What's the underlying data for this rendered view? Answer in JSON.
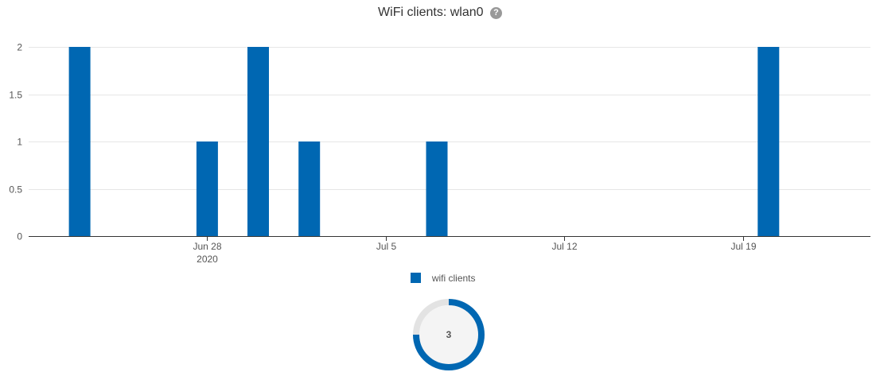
{
  "header": {
    "title": "WiFi clients: wlan0",
    "help_glyph": "?"
  },
  "colors": {
    "series": "#0067b2",
    "gauge_track": "#e3e3e3",
    "gauge_inner": "#f4f4f4"
  },
  "chart_data": {
    "type": "bar",
    "title": "WiFi clients: wlan0",
    "xlabel": "",
    "ylabel": "",
    "ylim": [
      0,
      2
    ],
    "yticks": [
      {
        "value": 0,
        "label": "0"
      },
      {
        "value": 0.5,
        "label": "0.5"
      },
      {
        "value": 1,
        "label": "1"
      },
      {
        "value": 1.5,
        "label": "1.5"
      },
      {
        "value": 2,
        "label": "2"
      }
    ],
    "xlim": [
      "2020-06-21",
      "2020-07-24"
    ],
    "xticks": [
      {
        "date": "2020-06-28",
        "label": "Jun 28",
        "sublabel": "2020"
      },
      {
        "date": "2020-07-05",
        "label": "Jul 5",
        "sublabel": ""
      },
      {
        "date": "2020-07-12",
        "label": "Jul 12",
        "sublabel": ""
      },
      {
        "date": "2020-07-19",
        "label": "Jul 19",
        "sublabel": ""
      }
    ],
    "series": [
      {
        "name": "wifi clients",
        "points": [
          {
            "date": "2020-06-23",
            "value": 2
          },
          {
            "date": "2020-06-28",
            "value": 1
          },
          {
            "date": "2020-06-30",
            "value": 2
          },
          {
            "date": "2020-07-02",
            "value": 1
          },
          {
            "date": "2020-07-07",
            "value": 1
          },
          {
            "date": "2020-07-20",
            "value": 2
          }
        ]
      }
    ],
    "grid": true,
    "legend": "bottom-center"
  },
  "gauge": {
    "value": "3",
    "fraction": 0.75
  }
}
